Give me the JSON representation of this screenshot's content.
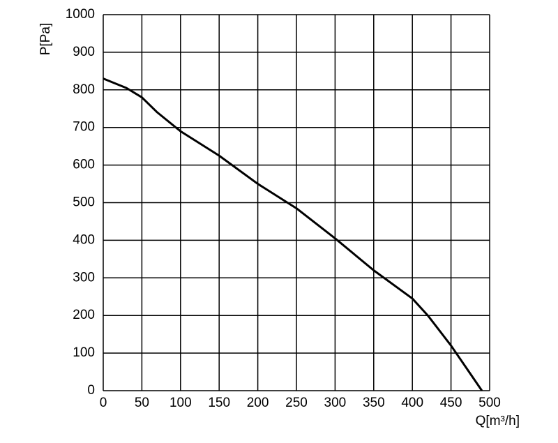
{
  "chart_data": {
    "type": "line",
    "x_label": "Q[m³/h]",
    "y_label": "P[Pa]",
    "x": [
      0,
      30,
      50,
      70,
      100,
      150,
      200,
      250,
      300,
      350,
      400,
      420,
      450,
      470,
      490
    ],
    "values": [
      830,
      805,
      780,
      740,
      690,
      625,
      550,
      485,
      405,
      320,
      245,
      200,
      120,
      60,
      0
    ],
    "color": "#000000",
    "xlim": [
      0,
      500
    ],
    "xticks": [
      0,
      50,
      100,
      150,
      200,
      250,
      300,
      350,
      400,
      450,
      500
    ],
    "ylim": [
      0,
      1000
    ],
    "yticks": [
      0,
      100,
      200,
      300,
      400,
      500,
      600,
      700,
      800,
      900,
      1000
    ],
    "grid": true
  }
}
